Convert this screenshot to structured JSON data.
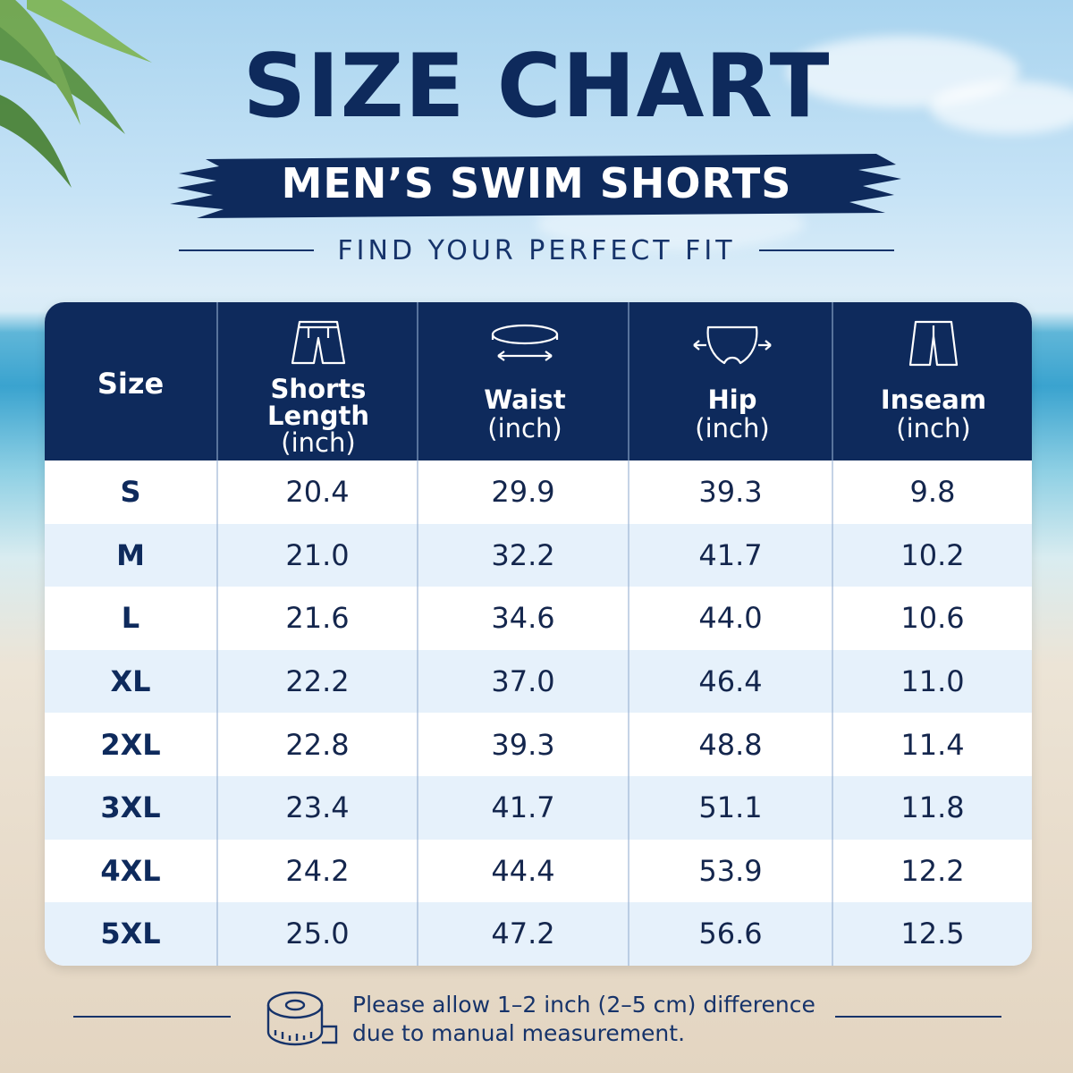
{
  "title": "SIZE CHART",
  "subtitle": "MEN’S SWIM SHORTS",
  "tagline": "FIND YOUR PERFECT FIT",
  "table": {
    "columns": [
      {
        "label": "Size",
        "unit": "",
        "icon": "none"
      },
      {
        "label": "Shorts Length",
        "unit": "(inch)",
        "icon": "shorts-icon"
      },
      {
        "label": "Waist",
        "unit": "(inch)",
        "icon": "waist-icon"
      },
      {
        "label": "Hip",
        "unit": "(inch)",
        "icon": "hip-icon"
      },
      {
        "label": "Inseam",
        "unit": "(inch)",
        "icon": "inseam-icon"
      }
    ],
    "rows": [
      [
        "S",
        "20.4",
        "29.9",
        "39.3",
        "9.8"
      ],
      [
        "M",
        "21.0",
        "32.2",
        "41.7",
        "10.2"
      ],
      [
        "L",
        "21.6",
        "34.6",
        "44.0",
        "10.6"
      ],
      [
        "XL",
        "22.2",
        "37.0",
        "46.4",
        "11.0"
      ],
      [
        "2XL",
        "22.8",
        "39.3",
        "48.8",
        "11.4"
      ],
      [
        "3XL",
        "23.4",
        "41.7",
        "51.1",
        "11.8"
      ],
      [
        "4XL",
        "24.2",
        "44.4",
        "53.9",
        "12.2"
      ],
      [
        "5XL",
        "25.0",
        "47.2",
        "56.6",
        "12.5"
      ]
    ]
  },
  "footer": {
    "note_line1": "Please allow 1–2 inch (2–5 cm) difference",
    "note_line2": "due to manual measurement.",
    "icon": "measuring-tape-icon"
  },
  "colors": {
    "navy": "#0e2a5c",
    "row_alt": "#e6f1fb",
    "row": "#ffffff"
  }
}
